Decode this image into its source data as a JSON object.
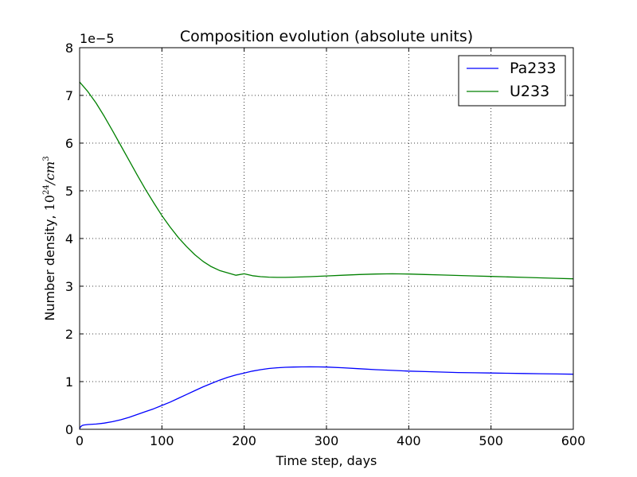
{
  "chart_data": {
    "type": "line",
    "title": "Composition evolution (absolute units)",
    "xlabel": "Time step, days",
    "ylabel": "Number density, 10^24/cm^3",
    "ylabel_prefix": "Number density, ",
    "ylabel_base": "10",
    "ylabel_exp1": "24",
    "ylabel_unit": "/cm",
    "ylabel_exp2": "3",
    "y_offset_label": "1e−5",
    "xlim": [
      0,
      600
    ],
    "ylim": [
      0,
      8e-05
    ],
    "x_ticks": [
      0,
      100,
      200,
      300,
      400,
      500,
      600
    ],
    "x_tick_labels": [
      "0",
      "100",
      "200",
      "300",
      "400",
      "500",
      "600"
    ],
    "y_ticks": [
      0,
      1e-05,
      2e-05,
      3e-05,
      4e-05,
      5e-05,
      6e-05,
      7e-05,
      8e-05
    ],
    "y_tick_labels": [
      "0",
      "1",
      "2",
      "3",
      "4",
      "5",
      "6",
      "7",
      "8"
    ],
    "grid": true,
    "legend_position": "top-right",
    "series": [
      {
        "name": "Pa233",
        "color": "#0000ff",
        "x": [
          0,
          1,
          3,
          5,
          10,
          20,
          30,
          40,
          50,
          60,
          70,
          80,
          90,
          100,
          110,
          120,
          130,
          140,
          150,
          160,
          170,
          180,
          190,
          200,
          210,
          220,
          230,
          240,
          250,
          260,
          270,
          280,
          290,
          300,
          320,
          340,
          360,
          380,
          400,
          420,
          440,
          460,
          480,
          500,
          520,
          540,
          560,
          580,
          600
        ],
        "y": [
          1e-07,
          5e-07,
          8e-07,
          9e-07,
          1e-06,
          1.1e-06,
          1.3e-06,
          1.6e-06,
          2e-06,
          2.5e-06,
          3.1e-06,
          3.7e-06,
          4.3e-06,
          5e-06,
          5.7e-06,
          6.5e-06,
          7.3e-06,
          8.1e-06,
          8.9e-06,
          9.6e-06,
          1.03e-05,
          1.09e-05,
          1.14e-05,
          1.18e-05,
          1.22e-05,
          1.25e-05,
          1.275e-05,
          1.29e-05,
          1.3e-05,
          1.305e-05,
          1.308e-05,
          1.31e-05,
          1.308e-05,
          1.305e-05,
          1.29e-05,
          1.27e-05,
          1.25e-05,
          1.235e-05,
          1.22e-05,
          1.21e-05,
          1.2e-05,
          1.19e-05,
          1.185e-05,
          1.18e-05,
          1.175e-05,
          1.17e-05,
          1.165e-05,
          1.16e-05,
          1.155e-05
        ]
      },
      {
        "name": "U233",
        "color": "#008000",
        "x": [
          0,
          10,
          20,
          30,
          40,
          50,
          60,
          70,
          80,
          90,
          100,
          110,
          120,
          130,
          140,
          150,
          160,
          170,
          180,
          190,
          200,
          210,
          220,
          230,
          240,
          250,
          260,
          280,
          300,
          320,
          340,
          360,
          380,
          400,
          420,
          440,
          460,
          480,
          500,
          520,
          540,
          560,
          580,
          600
        ],
        "y": [
          7.28e-05,
          7.08e-05,
          6.84e-05,
          6.56e-05,
          6.26e-05,
          5.95e-05,
          5.64e-05,
          5.33e-05,
          5.03e-05,
          4.75e-05,
          4.48e-05,
          4.24e-05,
          4.02e-05,
          3.83e-05,
          3.66e-05,
          3.52e-05,
          3.41e-05,
          3.33e-05,
          3.28e-05,
          3.23e-05,
          3.26e-05,
          3.22e-05,
          3.2e-05,
          3.19e-05,
          3.185e-05,
          3.185e-05,
          3.19e-05,
          3.2e-05,
          3.215e-05,
          3.23e-05,
          3.245e-05,
          3.255e-05,
          3.26e-05,
          3.255e-05,
          3.245e-05,
          3.235e-05,
          3.225e-05,
          3.215e-05,
          3.205e-05,
          3.195e-05,
          3.185e-05,
          3.175e-05,
          3.165e-05,
          3.155e-05
        ]
      }
    ]
  }
}
